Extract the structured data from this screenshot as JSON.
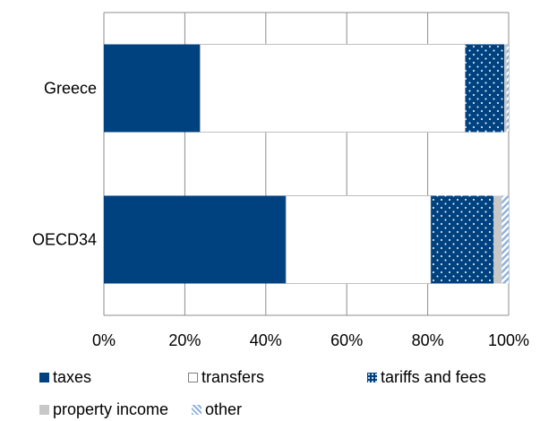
{
  "chart_data": {
    "type": "bar",
    "orientation": "horizontal",
    "stacked": true,
    "percent_stacked": true,
    "categories": [
      "Greece",
      "OECD34"
    ],
    "series": [
      {
        "name": "taxes",
        "values": [
          23.8,
          45.0
        ],
        "color": "#00427f",
        "pattern": "solid"
      },
      {
        "name": "transfers",
        "values": [
          65.5,
          35.8
        ],
        "color": "#ffffff",
        "pattern": "outline"
      },
      {
        "name": "tariffs and fees",
        "values": [
          9.6,
          15.5
        ],
        "color": "#00427f",
        "pattern": "dotted"
      },
      {
        "name": "property income",
        "values": [
          0.6,
          2.0
        ],
        "color": "#c8c8c8",
        "pattern": "solid"
      },
      {
        "name": "other",
        "values": [
          0.5,
          1.7
        ],
        "color": "#8fb2dc",
        "pattern": "hatched"
      }
    ],
    "x_ticks": [
      "0%",
      "20%",
      "40%",
      "60%",
      "80%",
      "100%"
    ],
    "xlim": [
      0,
      100
    ],
    "grid": true,
    "legend_position": "bottom"
  }
}
